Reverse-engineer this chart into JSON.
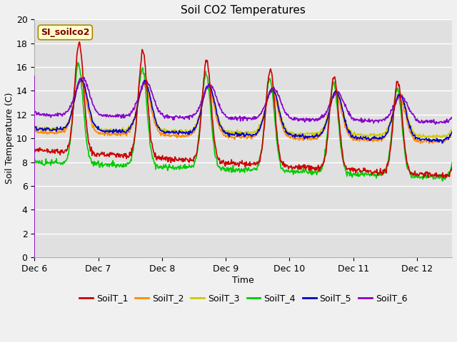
{
  "title": "Soil CO2 Temperatures",
  "xlabel": "Time",
  "ylabel": "Soil Temperature (C)",
  "ylim": [
    0,
    20
  ],
  "xlim": [
    0,
    6.55
  ],
  "xtick_positions": [
    0,
    1,
    2,
    3,
    4,
    5,
    6
  ],
  "xtick_labels": [
    "Dec 6",
    "Dec 7",
    "Dec 8",
    "Dec 9",
    "Dec 10",
    "Dec 11",
    "Dec 12"
  ],
  "ytick_positions": [
    0,
    2,
    4,
    6,
    8,
    10,
    12,
    14,
    16,
    18,
    20
  ],
  "fig_bg": "#f0f0f0",
  "plot_bg": "#e0e0e0",
  "annotation_text": "SI_soilco2",
  "annotation_bg": "#ffffcc",
  "annotation_fg": "#800000",
  "colors": {
    "SoilT_1": "#cc0000",
    "SoilT_2": "#ff8800",
    "SoilT_3": "#cccc00",
    "SoilT_4": "#00cc00",
    "SoilT_5": "#0000cc",
    "SoilT_6": "#8800cc"
  },
  "spike_color": "#8800cc",
  "legend_labels": [
    "SoilT_1",
    "SoilT_2",
    "SoilT_3",
    "SoilT_4",
    "SoilT_5",
    "SoilT_6"
  ]
}
